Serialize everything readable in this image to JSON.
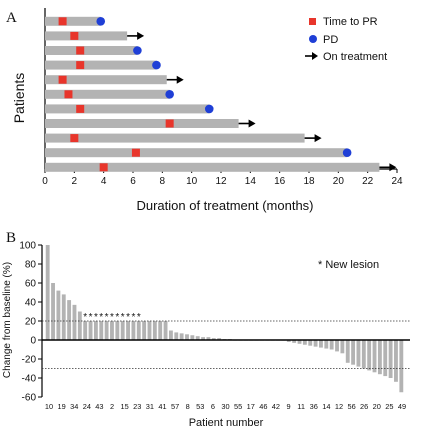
{
  "chart_data": [
    {
      "type": "swimmer",
      "panel_label": "A",
      "xlabel": "Duration of treatment (months)",
      "ylabel": "Patients",
      "xlim": [
        0,
        24
      ],
      "xticks": [
        "0",
        "2",
        "4",
        "6",
        "8",
        "10",
        "12",
        "14",
        "16",
        "18",
        "20",
        "22",
        "24"
      ],
      "legend": {
        "placement": "top-right",
        "items": [
          {
            "label": "Time to PR",
            "marker": "square",
            "color": "#e8352b"
          },
          {
            "label": "PD",
            "marker": "circle",
            "color": "#1f3fd6"
          },
          {
            "label": "On treatment",
            "marker": "arrow",
            "color": "#000000"
          }
        ]
      },
      "bar_color": "#b3b3b3",
      "patients": [
        {
          "duration": 3.8,
          "pr": [
            1.2
          ],
          "end": "PD"
        },
        {
          "duration": 5.6,
          "pr": [
            2.0
          ],
          "end": "ongoing"
        },
        {
          "duration": 6.3,
          "pr": [
            2.4
          ],
          "end": "PD"
        },
        {
          "duration": 7.6,
          "pr": [
            2.4
          ],
          "end": "PD"
        },
        {
          "duration": 8.3,
          "pr": [
            1.2
          ],
          "end": "ongoing"
        },
        {
          "duration": 8.5,
          "pr": [
            1.6
          ],
          "end": "PD"
        },
        {
          "duration": 11.2,
          "pr": [
            2.4
          ],
          "end": "PD"
        },
        {
          "duration": 13.2,
          "pr": [
            8.5
          ],
          "end": "ongoing"
        },
        {
          "duration": 17.7,
          "pr": [
            2.0
          ],
          "end": "ongoing"
        },
        {
          "duration": 20.6,
          "pr": [
            6.2
          ],
          "end": "PD"
        },
        {
          "duration": 22.8,
          "pr": [
            4.0
          ],
          "end": "ongoing"
        }
      ]
    },
    {
      "type": "waterfall",
      "panel_label": "B",
      "xlabel": "Patient number",
      "ylabel": "Change from baseline (%)",
      "ylim": [
        -60,
        100
      ],
      "yticks": [
        "-60",
        "-40",
        "-20",
        "0",
        "20",
        "40",
        "60",
        "80",
        "100"
      ],
      "reference_lines": [
        20,
        -30
      ],
      "annotation": "* New lesion",
      "bar_color": "#b3b3b3",
      "labeled_categories": [
        "10",
        "19",
        "34",
        "24",
        "43",
        "2",
        "15",
        "23",
        "31",
        "41",
        "57",
        "8",
        "53",
        "6",
        "30",
        "55",
        "17",
        "46",
        "42",
        "9",
        "11",
        "36",
        "14",
        "12",
        "56",
        "26",
        "20",
        "25",
        "49"
      ],
      "values": [
        100,
        60,
        52,
        48,
        42,
        37,
        30,
        20,
        20,
        20,
        20,
        20,
        20,
        20,
        20,
        20,
        20,
        20,
        20,
        20,
        20,
        20,
        20,
        10,
        8,
        7,
        6,
        5,
        4,
        3,
        3,
        2,
        2,
        1,
        1,
        0,
        0,
        0,
        0,
        0,
        0,
        0,
        0,
        0,
        0,
        -2,
        -3,
        -4,
        -5,
        -6,
        -7,
        -8,
        -9,
        -10,
        -12,
        -14,
        -24,
        -26,
        -28,
        -30,
        -32,
        -34,
        -36,
        -38,
        -40,
        -44,
        -55
      ],
      "new_lesion_flags": [
        7,
        8,
        9,
        10,
        11,
        12,
        13,
        14,
        15,
        16,
        17
      ],
      "asterisk": "*"
    }
  ]
}
